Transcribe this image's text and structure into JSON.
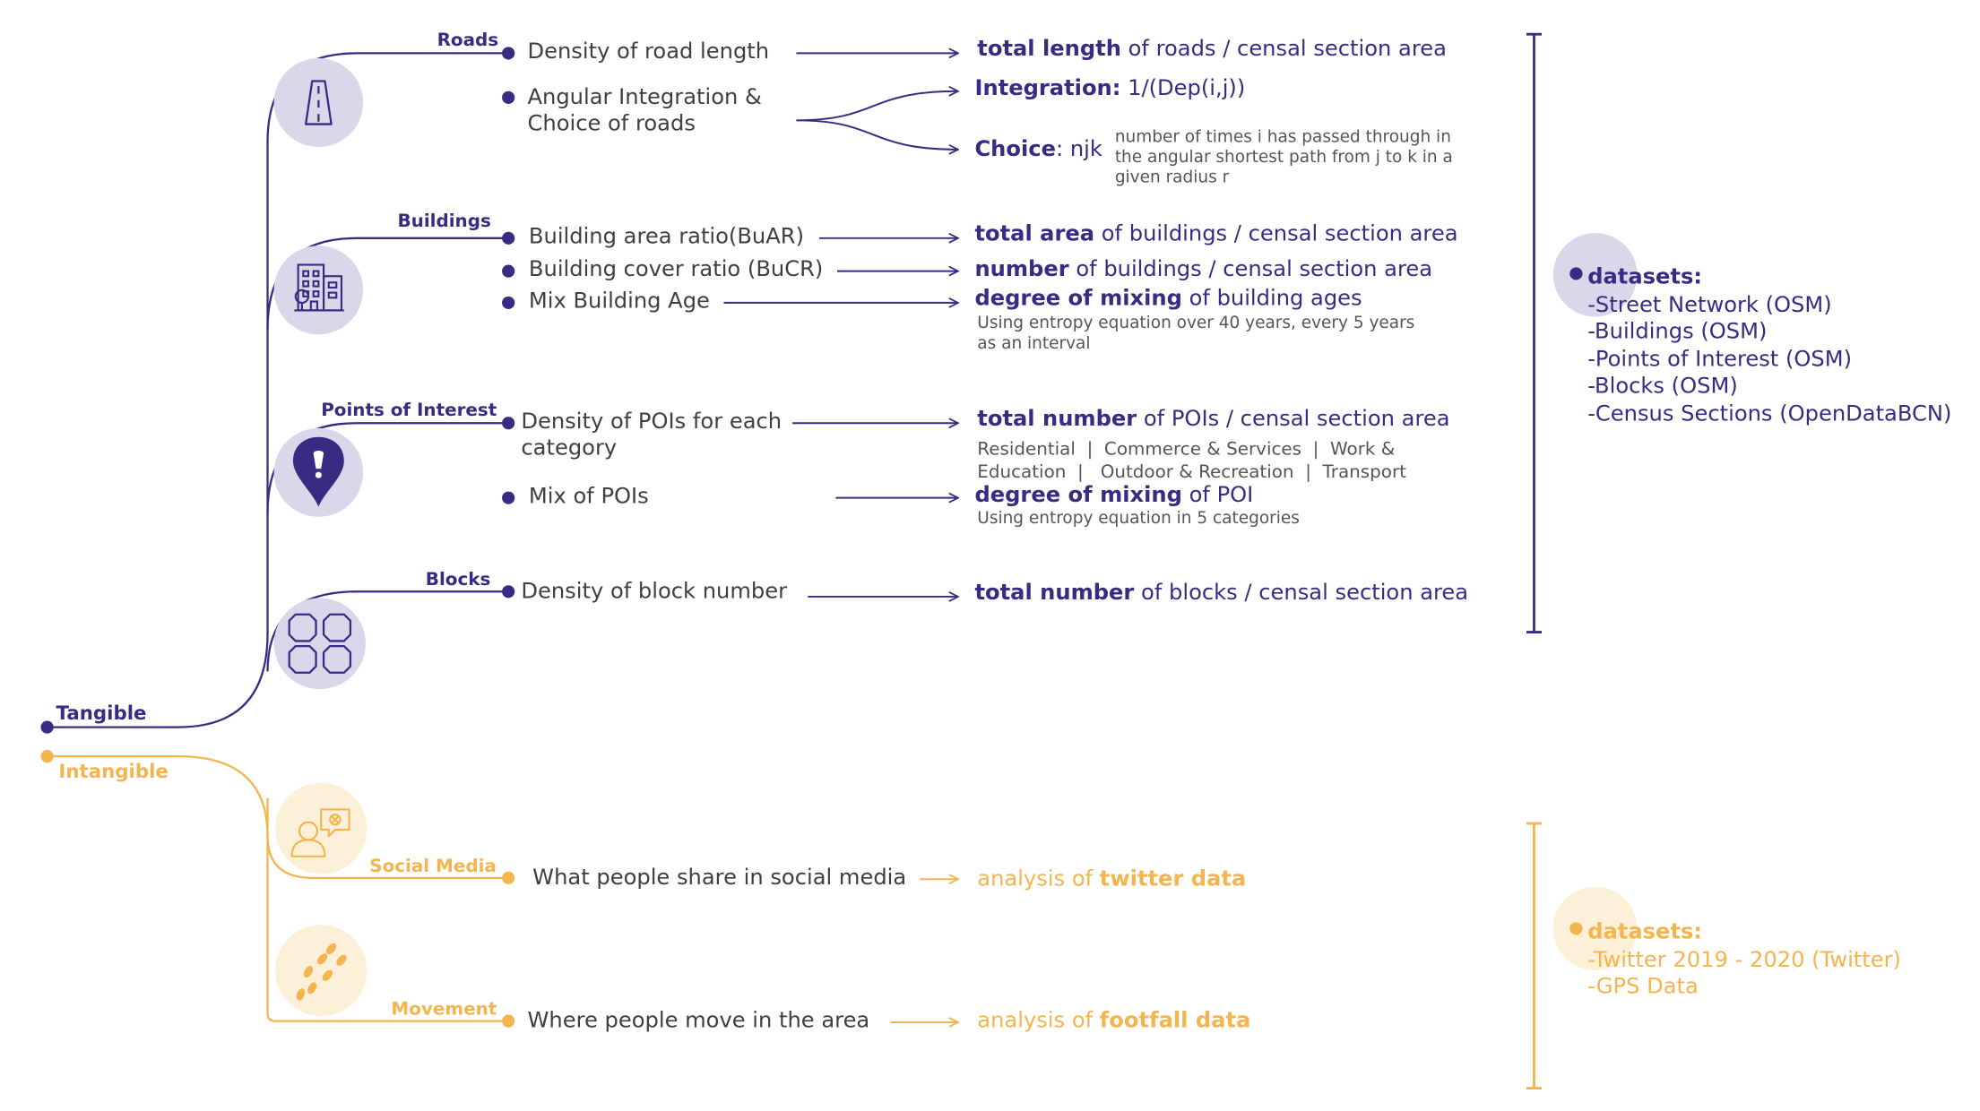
{
  "colors": {
    "tangible": "#3b2a84",
    "intangible": "#f4b44e",
    "tangible_bg": "#dcd6ea",
    "intangible_bg": "#fdf0d9",
    "text": "#3f3f3f"
  },
  "tangible": {
    "label": "Tangible",
    "roads": {
      "label": "Roads",
      "icon": "road-icon",
      "item1": "Density of road length",
      "result1": {
        "bold": "total length",
        "rest": " of roads / censal section area"
      },
      "item2_line1": "Angular Integration &",
      "item2_line2": "Choice of roads",
      "integration": {
        "bold": "Integration:",
        "rest": " 1/(Dep(i,j))"
      },
      "choice": {
        "bold": "Choice",
        "rest": ": njk"
      },
      "choice_note": [
        "number of times i has passed through in",
        "the angular shortest path from j to k in a",
        "given radius r"
      ]
    },
    "buildings": {
      "label": "Buildings",
      "icon": "buildings-icon",
      "item1": "Building area ratio(BuAR)",
      "result1": {
        "bold": "total area",
        "rest": " of buildings / censal section area"
      },
      "item2": "Building cover ratio (BuCR)",
      "result2": {
        "bold": "number",
        "rest": " of buildings / censal section area"
      },
      "item3": "Mix Building Age",
      "result3": {
        "bold": "degree of mixing",
        "rest": " of building ages"
      },
      "note3": [
        "Using entropy equation over 40 years, every 5 years",
        "as an interval"
      ]
    },
    "poi": {
      "label": "Points of Interest",
      "icon": "map-pin-icon",
      "item1_line1": "Density of POIs for each",
      "item1_line2": "category",
      "result1": {
        "bold": "total number",
        "rest": " of POIs / censal section area"
      },
      "categories": [
        "Residential  |  Commerce & Services  |  Work &",
        "Education  |   Outdoor & Recreation  |  Transport"
      ],
      "item2": "Mix of POIs",
      "result2": {
        "bold": "degree of mixing",
        "rest": " of POI"
      },
      "note2": "Using entropy equation in 5 categories"
    },
    "blocks": {
      "label": "Blocks",
      "icon": "blocks-grid-icon",
      "item1": "Density of block number",
      "result1": {
        "bold": "total number",
        "rest": " of blocks / censal section area"
      }
    },
    "datasets": {
      "heading": "datasets:",
      "items": [
        "-Street Network (OSM)",
        "-Buildings (OSM)",
        "-Points of Interest (OSM)",
        "-Blocks (OSM)",
        "-Census Sections (OpenDataBCN)"
      ]
    }
  },
  "intangible": {
    "label": "Intangible",
    "social": {
      "label": "Social Media",
      "icon": "social-user-chat-icon",
      "item1": "What people share in social media",
      "result1": {
        "pre": "analysis of ",
        "bold": "twitter data"
      }
    },
    "movement": {
      "label": "Movement",
      "icon": "footprints-icon",
      "item1": "Where people move in the area",
      "result1": {
        "pre": "analysis of ",
        "bold": "footfall data"
      }
    },
    "datasets": {
      "heading": "datasets:",
      "items": [
        "-Twitter 2019 - 2020 (Twitter)",
        "-GPS Data"
      ]
    }
  }
}
